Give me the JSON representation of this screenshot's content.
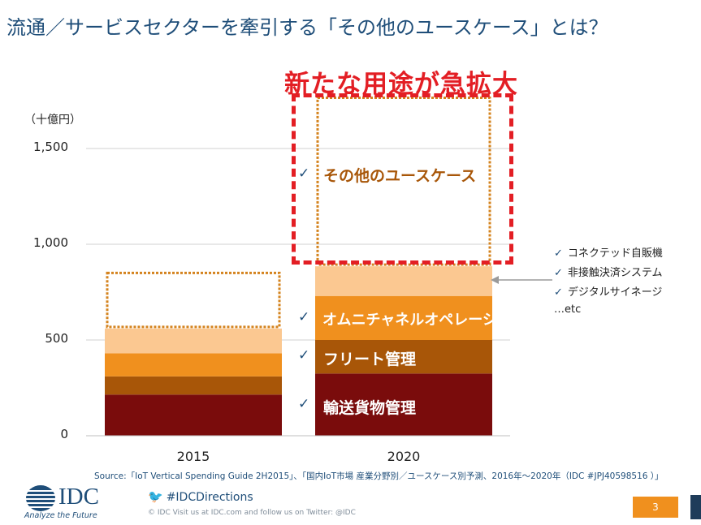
{
  "title": "流通／サービスセクターを牽引する「その他のユースケース」とは？",
  "unit_label": "（十億円）",
  "headline": "新たな用途が急拡大",
  "checkmark": "✓",
  "colors": {
    "dark_red": "#7a0c0c",
    "brown": "#a85608",
    "orange": "#f0901e",
    "light_peach": "#fbc891",
    "dotted_outline": "#d4831e",
    "red_callout": "#e31e24",
    "navy": "#1f4e79"
  },
  "chart_data": {
    "type": "bar",
    "stacked": true,
    "categories": [
      "2015",
      "2020"
    ],
    "ylim": [
      0,
      1600
    ],
    "yticks": [
      0,
      500,
      1000,
      1500
    ],
    "ytick_labels": [
      "0",
      "500",
      "1,000",
      "1,500"
    ],
    "grid": true,
    "series": [
      {
        "name": "輸送貨物管理",
        "values": [
          215,
          325
        ],
        "color": "#7a0c0c"
      },
      {
        "name": "フリート管理",
        "values": [
          95,
          175
        ],
        "color": "#a85608"
      },
      {
        "name": "オムニチャネルオペレーション",
        "values": [
          120,
          230
        ],
        "color": "#f0901e"
      },
      {
        "name": "",
        "values": [
          130,
          155
        ],
        "color": "#fbc891"
      },
      {
        "name": "その他のユースケース",
        "values": [
          290,
          880
        ],
        "dotted_outline": true
      }
    ]
  },
  "labels": {
    "other_usecase": "その他のユースケース",
    "omni": "オムニチャネルオペレーション",
    "fleet": "フリート管理",
    "transport": "輸送貨物管理"
  },
  "right_notes": [
    "コネクテッド自販機",
    "非接触決済システム",
    "デジタルサイネージ"
  ],
  "right_notes_etc": "…etc",
  "source": "Source:「IoT Vertical Spending Guide 2H2015」、「国内IoT市場 産業分野別／ユースケース別予測、2016年～2020年（IDC #JPJ40598516 ）」",
  "footer": {
    "logo_text": "IDC",
    "logo_tagline": "Analyze the Future",
    "twitter": "#IDCDirections",
    "copyright": "© IDC   Visit us at IDC.com and follow us on Twitter: @IDC",
    "page": "3"
  }
}
